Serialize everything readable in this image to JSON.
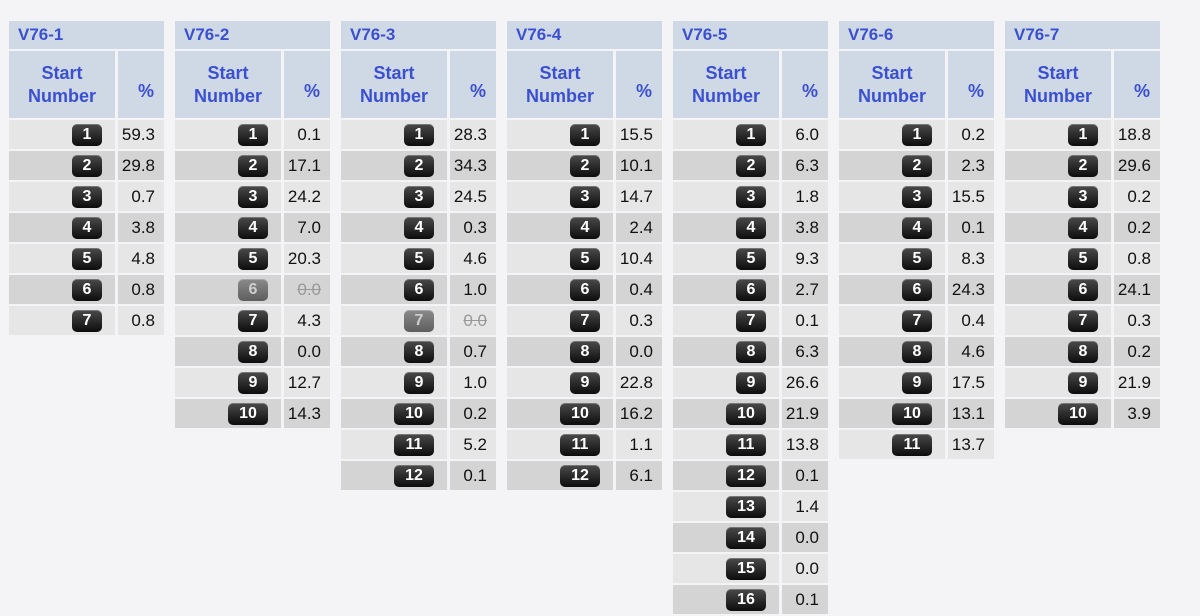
{
  "header": {
    "start_label": "Start Number",
    "pct_label": "%"
  },
  "tables": [
    {
      "title": "V76-1",
      "rows": [
        {
          "num": "1",
          "pct": "59.3"
        },
        {
          "num": "2",
          "pct": "29.8"
        },
        {
          "num": "3",
          "pct": "0.7"
        },
        {
          "num": "4",
          "pct": "3.8"
        },
        {
          "num": "5",
          "pct": "4.8"
        },
        {
          "num": "6",
          "pct": "0.8"
        },
        {
          "num": "7",
          "pct": "0.8"
        }
      ]
    },
    {
      "title": "V76-2",
      "rows": [
        {
          "num": "1",
          "pct": "0.1"
        },
        {
          "num": "2",
          "pct": "17.1"
        },
        {
          "num": "3",
          "pct": "24.2"
        },
        {
          "num": "4",
          "pct": "7.0"
        },
        {
          "num": "5",
          "pct": "20.3"
        },
        {
          "num": "6",
          "pct": "0.0",
          "scratched": true
        },
        {
          "num": "7",
          "pct": "4.3"
        },
        {
          "num": "8",
          "pct": "0.0"
        },
        {
          "num": "9",
          "pct": "12.7"
        },
        {
          "num": "10",
          "pct": "14.3"
        }
      ]
    },
    {
      "title": "V76-3",
      "rows": [
        {
          "num": "1",
          "pct": "28.3"
        },
        {
          "num": "2",
          "pct": "34.3"
        },
        {
          "num": "3",
          "pct": "24.5"
        },
        {
          "num": "4",
          "pct": "0.3"
        },
        {
          "num": "5",
          "pct": "4.6"
        },
        {
          "num": "6",
          "pct": "1.0"
        },
        {
          "num": "7",
          "pct": "0.0",
          "scratched": true
        },
        {
          "num": "8",
          "pct": "0.7"
        },
        {
          "num": "9",
          "pct": "1.0"
        },
        {
          "num": "10",
          "pct": "0.2"
        },
        {
          "num": "11",
          "pct": "5.2"
        },
        {
          "num": "12",
          "pct": "0.1"
        }
      ]
    },
    {
      "title": "V76-4",
      "rows": [
        {
          "num": "1",
          "pct": "15.5"
        },
        {
          "num": "2",
          "pct": "10.1"
        },
        {
          "num": "3",
          "pct": "14.7"
        },
        {
          "num": "4",
          "pct": "2.4"
        },
        {
          "num": "5",
          "pct": "10.4"
        },
        {
          "num": "6",
          "pct": "0.4"
        },
        {
          "num": "7",
          "pct": "0.3"
        },
        {
          "num": "8",
          "pct": "0.0"
        },
        {
          "num": "9",
          "pct": "22.8"
        },
        {
          "num": "10",
          "pct": "16.2"
        },
        {
          "num": "11",
          "pct": "1.1"
        },
        {
          "num": "12",
          "pct": "6.1"
        }
      ]
    },
    {
      "title": "V76-5",
      "rows": [
        {
          "num": "1",
          "pct": "6.0"
        },
        {
          "num": "2",
          "pct": "6.3"
        },
        {
          "num": "3",
          "pct": "1.8"
        },
        {
          "num": "4",
          "pct": "3.8"
        },
        {
          "num": "5",
          "pct": "9.3"
        },
        {
          "num": "6",
          "pct": "2.7"
        },
        {
          "num": "7",
          "pct": "0.1"
        },
        {
          "num": "8",
          "pct": "6.3"
        },
        {
          "num": "9",
          "pct": "26.6"
        },
        {
          "num": "10",
          "pct": "21.9"
        },
        {
          "num": "11",
          "pct": "13.8"
        },
        {
          "num": "12",
          "pct": "0.1"
        },
        {
          "num": "13",
          "pct": "1.4"
        },
        {
          "num": "14",
          "pct": "0.0"
        },
        {
          "num": "15",
          "pct": "0.0"
        },
        {
          "num": "16",
          "pct": "0.1"
        }
      ]
    },
    {
      "title": "V76-6",
      "rows": [
        {
          "num": "1",
          "pct": "0.2"
        },
        {
          "num": "2",
          "pct": "2.3"
        },
        {
          "num": "3",
          "pct": "15.5"
        },
        {
          "num": "4",
          "pct": "0.1"
        },
        {
          "num": "5",
          "pct": "8.3"
        },
        {
          "num": "6",
          "pct": "24.3"
        },
        {
          "num": "7",
          "pct": "0.4"
        },
        {
          "num": "8",
          "pct": "4.6"
        },
        {
          "num": "9",
          "pct": "17.5"
        },
        {
          "num": "10",
          "pct": "13.1"
        },
        {
          "num": "11",
          "pct": "13.7"
        }
      ]
    },
    {
      "title": "V76-7",
      "rows": [
        {
          "num": "1",
          "pct": "18.8"
        },
        {
          "num": "2",
          "pct": "29.6"
        },
        {
          "num": "3",
          "pct": "0.2"
        },
        {
          "num": "4",
          "pct": "0.2"
        },
        {
          "num": "5",
          "pct": "0.8"
        },
        {
          "num": "6",
          "pct": "24.1"
        },
        {
          "num": "7",
          "pct": "0.3"
        },
        {
          "num": "8",
          "pct": "0.2"
        },
        {
          "num": "9",
          "pct": "21.9"
        },
        {
          "num": "10",
          "pct": "3.9"
        }
      ]
    }
  ]
}
